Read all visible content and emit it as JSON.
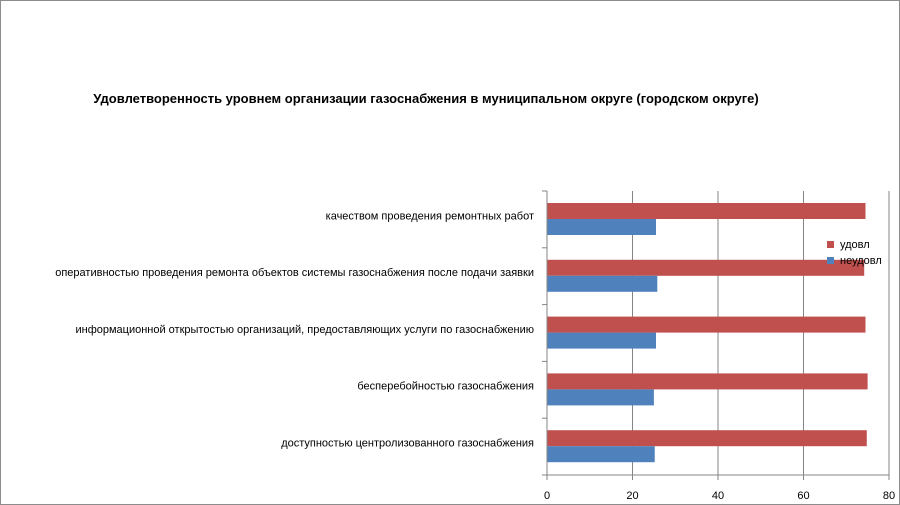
{
  "chart_data": {
    "type": "bar",
    "orientation": "horizontal",
    "title": "Удовлетворенность уровнем организации газоснабжения в муниципальном округе (городском округе)",
    "categories": [
      "качеством проведения ремонтных работ",
      "оперативностью проведения ремонта объектов системы газоснабжения после подачи заявки",
      "информационной открытостью организаций, предоставляющих услуги по газоснабжению",
      "бесперебойностью газоснабжения",
      "доступностью центролизованного газоснабжения"
    ],
    "series": [
      {
        "name": "удовл",
        "color": "#c0504d",
        "values": [
          74.5,
          74.2,
          74.5,
          75.0,
          74.8
        ]
      },
      {
        "name": "неудовл",
        "color": "#4f81bd",
        "values": [
          25.5,
          25.8,
          25.5,
          25.0,
          25.2
        ]
      }
    ],
    "xlim": [
      0,
      80
    ],
    "xticks": [
      0,
      20,
      40,
      60,
      80
    ],
    "grid": true,
    "legend": "right"
  }
}
